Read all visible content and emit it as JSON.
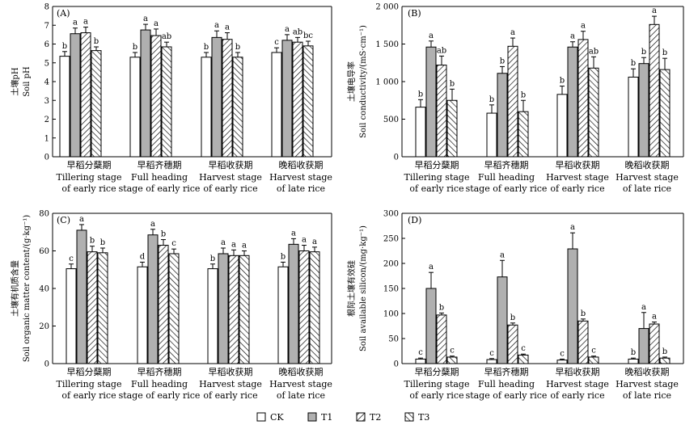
{
  "legend": [
    "CK",
    "T1",
    "T2",
    "T3"
  ],
  "chart_data": [
    {
      "type": "bar",
      "panel": "(A)",
      "ylabel_cn": "土壤pH",
      "ylabel_en": "Soil pH",
      "ylim": [
        0,
        8
      ],
      "yticks": [
        "0",
        "1",
        "2",
        "3",
        "4",
        "5",
        "6",
        "7",
        "8"
      ],
      "categories_cn": [
        "早稻分蘖期",
        "早稻齐穗期",
        "早稻收获期",
        "晚稻收获期"
      ],
      "categories_en1": [
        "Tillering stage",
        "Full heading",
        "Harvest stage",
        "Harvest stage"
      ],
      "categories_en2": [
        "of early rice",
        "stage of early rice",
        "of early rice",
        "of late rice"
      ],
      "series": [
        {
          "name": "CK",
          "values": [
            5.35,
            5.3,
            5.3,
            5.55
          ],
          "errors": [
            0.25,
            0.25,
            0.25,
            0.25
          ],
          "labels": [
            "b",
            "b",
            "b",
            "c"
          ]
        },
        {
          "name": "T1",
          "values": [
            6.55,
            6.75,
            6.35,
            6.2
          ],
          "errors": [
            0.3,
            0.3,
            0.35,
            0.3
          ],
          "labels": [
            "a",
            "a",
            "a",
            "a"
          ]
        },
        {
          "name": "T2",
          "values": [
            6.6,
            6.45,
            6.25,
            6.1
          ],
          "errors": [
            0.3,
            0.35,
            0.35,
            0.25
          ],
          "labels": [
            "a",
            "a",
            "a",
            "ab"
          ]
        },
        {
          "name": "T3",
          "values": [
            5.65,
            5.85,
            5.3,
            5.9
          ],
          "errors": [
            0.2,
            0.25,
            0.25,
            0.25
          ],
          "labels": [
            "b",
            "ab",
            "b",
            "bc"
          ]
        }
      ]
    },
    {
      "type": "bar",
      "panel": "(B)",
      "ylabel_cn": "土壤电导率",
      "ylabel_en": "Soil conductivity/(mS·cm⁻¹)",
      "ylim": [
        0,
        2000
      ],
      "yticks": [
        "0",
        "500",
        "1 000",
        "1 500",
        "2 000"
      ],
      "categories_cn": [
        "早稻分蘖期",
        "早稻齐穗期",
        "早稻收获期",
        "晚稻收获期"
      ],
      "categories_en1": [
        "Tillering stage",
        "Full heading",
        "Harvest stage",
        "Harvest stage"
      ],
      "categories_en2": [
        "of early rice",
        "stage of early rice",
        "of early rice",
        "of late rice"
      ],
      "series": [
        {
          "name": "CK",
          "values": [
            660,
            580,
            830,
            1060
          ],
          "errors": [
            100,
            110,
            110,
            110
          ],
          "labels": [
            "b",
            "b",
            "b",
            "b"
          ]
        },
        {
          "name": "T1",
          "values": [
            1460,
            1110,
            1460,
            1240
          ],
          "errors": [
            80,
            90,
            70,
            80
          ],
          "labels": [
            "a",
            "b",
            "a",
            "b"
          ]
        },
        {
          "name": "T2",
          "values": [
            1220,
            1470,
            1560,
            1760
          ],
          "errors": [
            120,
            110,
            110,
            110
          ],
          "labels": [
            "ab",
            "a",
            "a",
            "a"
          ]
        },
        {
          "name": "T3",
          "values": [
            750,
            600,
            1180,
            1160
          ],
          "errors": [
            150,
            150,
            150,
            150
          ],
          "labels": [
            "b",
            "b",
            "ab",
            "b"
          ]
        }
      ]
    },
    {
      "type": "bar",
      "panel": "(C)",
      "ylabel_cn": "土壤有机质含量",
      "ylabel_en": "Soil organic matter content/(g·kg⁻¹)",
      "ylim": [
        0,
        80
      ],
      "yticks": [
        "0",
        "20",
        "40",
        "60",
        "80"
      ],
      "categories_cn": [
        "早稻分蘖期",
        "早稻齐穗期",
        "早稻收获期",
        "晚稻收获期"
      ],
      "categories_en1": [
        "Tillering stage",
        "Full heading",
        "Harvest stage",
        "Harvest stage"
      ],
      "categories_en2": [
        "of early rice",
        "stage of early rice",
        "of early rice",
        "of late rice"
      ],
      "series": [
        {
          "name": "CK",
          "values": [
            50.5,
            51.5,
            50.5,
            51.5
          ],
          "errors": [
            2.5,
            2.5,
            2.5,
            2.5
          ],
          "labels": [
            "c",
            "d",
            "b",
            "b"
          ]
        },
        {
          "name": "T1",
          "values": [
            71,
            68.5,
            58.5,
            63.5
          ],
          "errors": [
            3,
            3,
            3,
            3
          ],
          "labels": [
            "a",
            "a",
            "a",
            "a"
          ]
        },
        {
          "name": "T2",
          "values": [
            59.5,
            63,
            57.5,
            60
          ],
          "errors": [
            3,
            3,
            3,
            3
          ],
          "labels": [
            "b",
            "b",
            "a",
            "a"
          ]
        },
        {
          "name": "T3",
          "values": [
            59,
            58.5,
            57.5,
            59.5
          ],
          "errors": [
            2.5,
            2.5,
            2.5,
            2.5
          ],
          "labels": [
            "b",
            "c",
            "a",
            "a"
          ]
        }
      ]
    },
    {
      "type": "bar",
      "panel": "(D)",
      "ylabel_cn": "根际土壤有效硅",
      "ylabel_en": "Soil available silicon/(mg·kg⁻¹)",
      "ylim": [
        0,
        300
      ],
      "yticks": [
        "0",
        "50",
        "100",
        "150",
        "200",
        "250",
        "300"
      ],
      "categories_cn": [
        "早稻分蘖期",
        "早稻齐穗期",
        "早稻收获期",
        "晚稻收获期"
      ],
      "categories_en1": [
        "Tillering stage",
        "Full heading",
        "Harvest stage",
        "Harvest stage"
      ],
      "categories_en2": [
        "of early rice",
        "stage of early rice",
        "of early rice",
        "of late rice"
      ],
      "series": [
        {
          "name": "CK",
          "values": [
            9,
            8,
            7,
            9
          ],
          "errors": [
            2,
            2,
            2,
            2
          ],
          "labels": [
            "c",
            "c",
            "c",
            "b"
          ]
        },
        {
          "name": "T1",
          "values": [
            150,
            173,
            229,
            70
          ],
          "errors": [
            32,
            33,
            32,
            32
          ],
          "labels": [
            "a",
            "a",
            "a",
            "a"
          ]
        },
        {
          "name": "T2",
          "values": [
            97,
            77,
            85,
            79
          ],
          "errors": [
            4,
            4,
            4,
            4
          ],
          "labels": [
            "b",
            "b",
            "b",
            "a"
          ]
        },
        {
          "name": "T3",
          "values": [
            13,
            17,
            13,
            11
          ],
          "errors": [
            2,
            2,
            2,
            2
          ],
          "labels": [
            "c",
            "c",
            "c",
            "b"
          ]
        }
      ]
    }
  ]
}
